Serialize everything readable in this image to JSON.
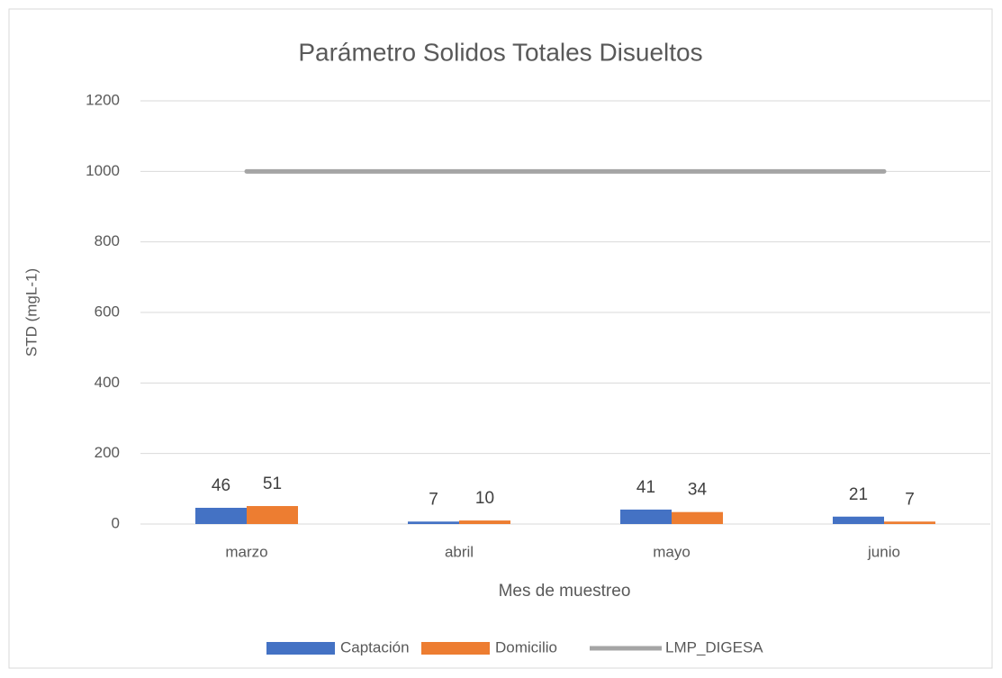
{
  "chart_data": {
    "type": "bar",
    "title": "Parámetro Solidos Totales Disueltos",
    "x_label": "Mes de muestreo",
    "y_label": "STD (mgL-1)",
    "categories": [
      "marzo",
      "abril",
      "mayo",
      "junio"
    ],
    "series": [
      {
        "name": "Captación",
        "color": "#4472c4",
        "values": [
          46,
          7,
          41,
          21
        ]
      },
      {
        "name": "Domicilio",
        "color": "#ed7d31",
        "values": [
          51,
          10,
          34,
          7
        ]
      },
      {
        "name": "LMP_DIGESA",
        "color": "#a5a5a5",
        "type": "line",
        "values": [
          1000,
          1000,
          1000,
          1000
        ]
      }
    ],
    "ylim": [
      0,
      1200
    ],
    "yticks": [
      0,
      200,
      400,
      600,
      800,
      1000,
      1200
    ],
    "grid": true,
    "legend": "bottom"
  }
}
